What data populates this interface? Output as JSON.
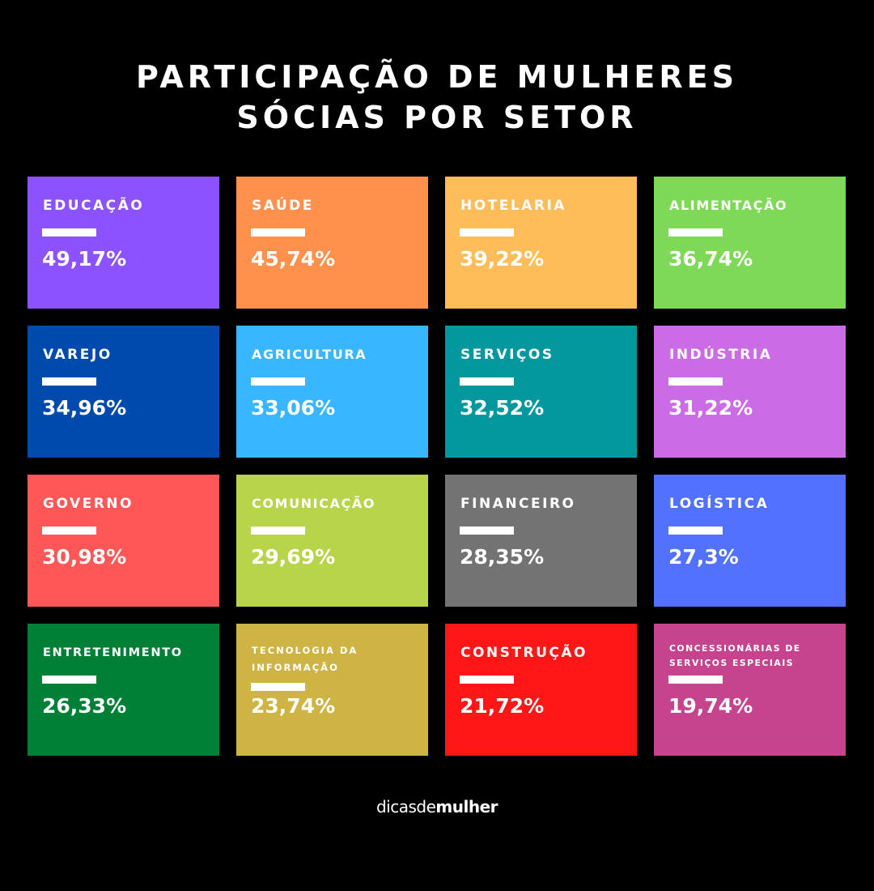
{
  "title": {
    "line1": "PARTICIPAÇÃO DE MULHERES",
    "line2": "SÓCIAS POR SETOR"
  },
  "sectors": [
    {
      "label": "EDUCAÇÃO",
      "value": "49,17%",
      "color": "#8C52FF"
    },
    {
      "label": "SAÚDE",
      "value": "45,74%",
      "color": "#FF914D"
    },
    {
      "label": "HOTELARIA",
      "value": "39,22%",
      "color": "#FFBD59"
    },
    {
      "label": "ALIMENTAÇÃO",
      "value": "36,74%",
      "color": "#7ED957"
    },
    {
      "label": "VAREJO",
      "value": "34,96%",
      "color": "#004AAD"
    },
    {
      "label": "AGRICULTURA",
      "value": "33,06%",
      "color": "#38B6FF"
    },
    {
      "label": "SERVIÇOS",
      "value": "32,52%",
      "color": "#03989E"
    },
    {
      "label": "INDÚSTRIA",
      "value": "31,22%",
      "color": "#CB6CE6"
    },
    {
      "label": "GOVERNO",
      "value": "30,98%",
      "color": "#FF5757"
    },
    {
      "label": "COMUNICAÇÃO",
      "value": "29,69%",
      "color": "#B8D44A"
    },
    {
      "label": "FINANCEIRO",
      "value": "28,35%",
      "color": "#737373"
    },
    {
      "label": "LOGÍSTICA",
      "value": "27,3%",
      "color": "#5271FF"
    },
    {
      "label": "ENTRETENIMENTO",
      "value": "26,33%",
      "color": "#008037"
    },
    {
      "label": "TECNOLOGIA DA INFORMAÇÃO",
      "value": "23,74%",
      "color": "#CDB444"
    },
    {
      "label": "CONSTRUÇÃO",
      "value": "21,72%",
      "color": "#FF1616"
    },
    {
      "label": "CONCESSIONÁRIAS DE SERVIÇOS ESPECIAIS",
      "value": "19,74%",
      "color": "#C6448E"
    }
  ],
  "footer": {
    "logo_part1": "dicas",
    "logo_part2": "de",
    "logo_part3": "mulher"
  }
}
